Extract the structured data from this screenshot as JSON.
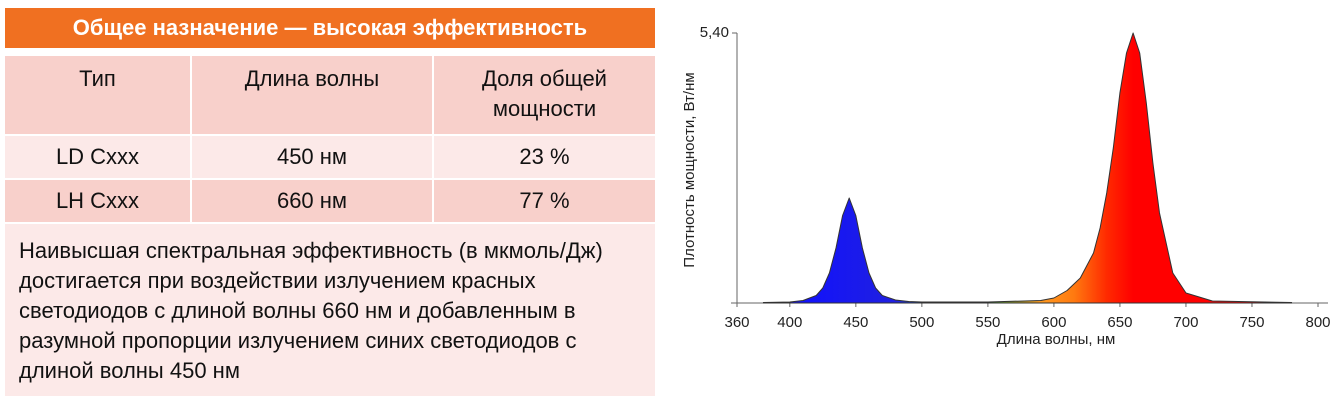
{
  "table": {
    "title": "Общее назначение — высокая эффективность",
    "header": [
      "Тип",
      "Длина волны",
      "Доля общей мощности"
    ],
    "rows": [
      [
        "LD Cxxx",
        "450 нм",
        "23 %"
      ],
      [
        "LH Cxxx",
        "660 нм",
        "77 %"
      ]
    ],
    "note": "Наивысшая спектральная эффективность (в мкмоль/Дж) достигается при воздействии излучением красных светодиодов с длиной волны 660 нм и добавленным в разумной пропорции излучением синих светодиодов с длиной волны 450 нм"
  },
  "chart_data": {
    "type": "area",
    "xlabel": "Длина волны, нм",
    "ylabel": "Плотность мощности, Вт/нм",
    "x": [
      380,
      400,
      410,
      420,
      425,
      430,
      435,
      440,
      445,
      450,
      455,
      460,
      465,
      470,
      480,
      490,
      500,
      550,
      590,
      600,
      610,
      620,
      630,
      635,
      640,
      645,
      650,
      655,
      660,
      665,
      670,
      675,
      680,
      690,
      700,
      720,
      780
    ],
    "values": [
      0.01,
      0.02,
      0.05,
      0.15,
      0.3,
      0.6,
      1.1,
      1.75,
      2.1,
      1.75,
      1.1,
      0.6,
      0.3,
      0.15,
      0.06,
      0.03,
      0.02,
      0.02,
      0.05,
      0.1,
      0.25,
      0.5,
      1.0,
      1.5,
      2.2,
      3.1,
      4.2,
      5.0,
      5.4,
      5.0,
      4.0,
      2.8,
      1.8,
      0.6,
      0.2,
      0.04,
      0.01
    ],
    "xlim": [
      360,
      800
    ],
    "xticks": [
      360,
      400,
      450,
      500,
      550,
      600,
      650,
      700,
      750,
      800
    ],
    "ylim": [
      0,
      5.4
    ],
    "yticks": [
      {
        "value": 5.4,
        "label": "5,40"
      }
    ]
  }
}
